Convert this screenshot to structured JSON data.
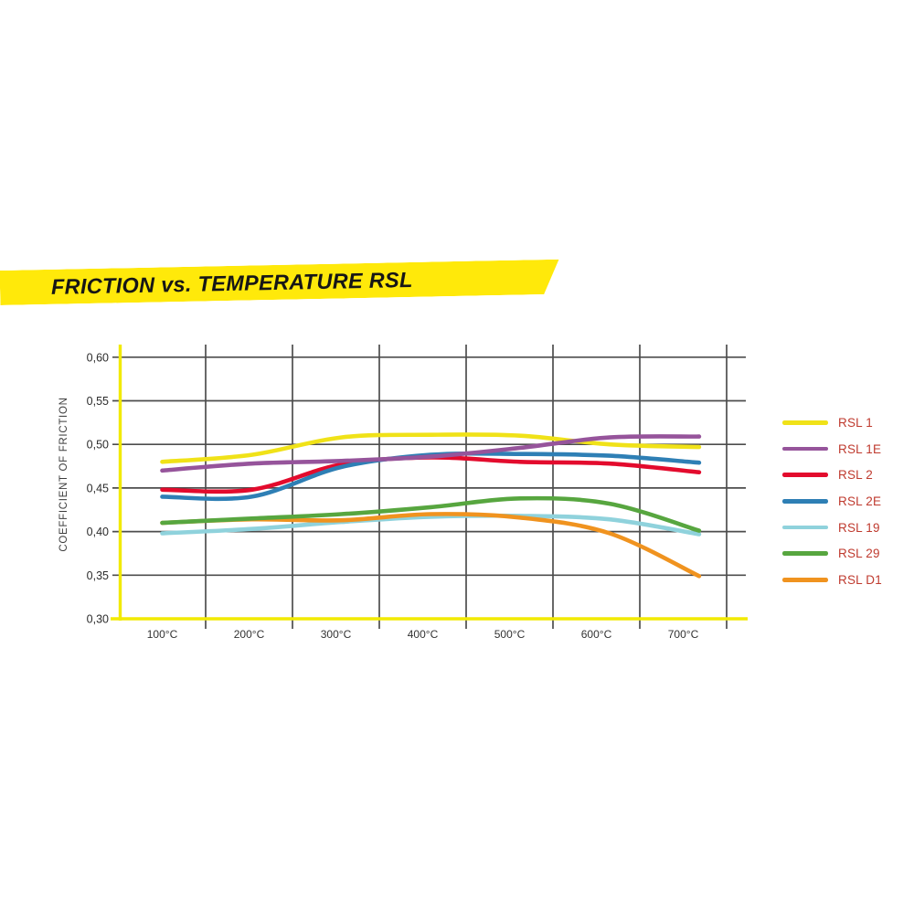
{
  "banner": {
    "title": "FRICTION vs. TEMPERATURE RSL",
    "background": "#ffe90a",
    "text_color": "#161616"
  },
  "chart_data": {
    "type": "line",
    "title": "FRICTION vs. TEMPERATURE RSL",
    "xlabel": "",
    "ylabel": "COEFFICIENT OF FRICTION",
    "categories": [
      "100°C",
      "200°C",
      "300°C",
      "400°C",
      "500°C",
      "600°C",
      "700°C"
    ],
    "x_values": [
      100,
      200,
      300,
      400,
      500,
      600,
      700
    ],
    "ylim": [
      0.3,
      0.6
    ],
    "y_ticks": [
      "0,60",
      "0,55",
      "0,50",
      "0,45",
      "0,40",
      "0,35",
      "0,30"
    ],
    "y_tick_values": [
      0.6,
      0.55,
      0.5,
      0.45,
      0.4,
      0.35,
      0.3
    ],
    "grid": true,
    "legend_position": "right",
    "axis_color": "#f2ea00",
    "grid_color": "#4d4d4d",
    "legend_text_color": "#bf3a2e",
    "series": [
      {
        "name": "RSL 1",
        "color": "#f0e218",
        "values": [
          0.48,
          0.488,
          0.508,
          0.511,
          0.51,
          0.5,
          0.497
        ]
      },
      {
        "name": "RSL 1E",
        "color": "#96549b",
        "values": [
          0.47,
          0.478,
          0.481,
          0.486,
          0.496,
          0.508,
          0.509
        ]
      },
      {
        "name": "RSL 2",
        "color": "#e30b2d",
        "values": [
          0.448,
          0.448,
          0.477,
          0.485,
          0.48,
          0.478,
          0.468
        ]
      },
      {
        "name": "RSL 2E",
        "color": "#2e7fb5",
        "values": [
          0.44,
          0.44,
          0.474,
          0.488,
          0.489,
          0.487,
          0.479
        ]
      },
      {
        "name": "RSL 19",
        "color": "#8fd2dc",
        "values": [
          0.398,
          0.403,
          0.411,
          0.417,
          0.418,
          0.414,
          0.397
        ]
      },
      {
        "name": "RSL 29",
        "color": "#57a63f",
        "values": [
          0.41,
          0.415,
          0.42,
          0.428,
          0.438,
          0.432,
          0.401
        ]
      },
      {
        "name": "RSL D1",
        "color": "#f0931f",
        "values": [
          0.41,
          0.414,
          0.413,
          0.42,
          0.416,
          0.398,
          0.349
        ]
      }
    ]
  }
}
